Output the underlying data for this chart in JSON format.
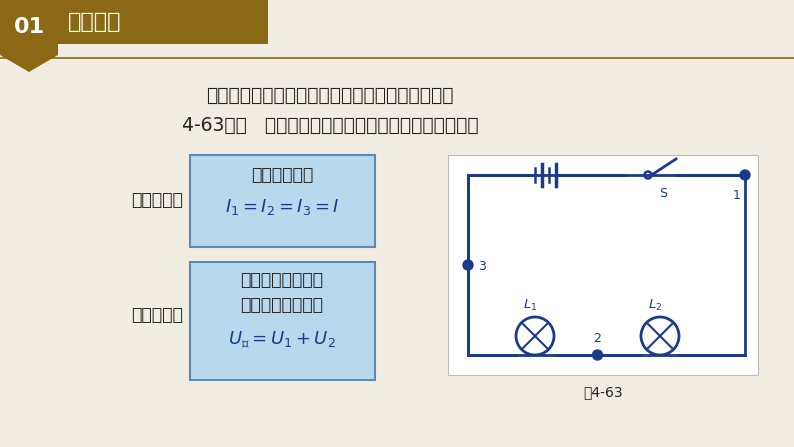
{
  "bg_color": "#f2ede3",
  "header_bg": "#8B6914",
  "header_text_color": "#ffffff",
  "header_num": "01",
  "header_title": "串联电路",
  "header_line_color": "#8B6914",
  "intro_line1": "在研究串联电路的电流与电压特点的实验中（如图",
  "intro_line2": "4-63），   我们已经知道串联电路中电流和电压特点：",
  "box_bg": "#b8d8ee",
  "box_border": "#5a8ab5",
  "label1": "电流特点：",
  "label2": "电压特点：",
  "box1_line1": "电流处处相等",
  "box1_formula": "$I_1 = I_2 = I_3 = I$",
  "box2_line1": "两灯上的电压之和",
  "box2_line2": "等于它们的总电压",
  "box2_formula": "$U_{总} = U_1 + U_2$",
  "circuit_label": "图4-63",
  "circuit_color": "#1a3a8a",
  "dot_color": "#1a3a8a",
  "text_color": "#222222",
  "formula_color": "#1a3a8a"
}
